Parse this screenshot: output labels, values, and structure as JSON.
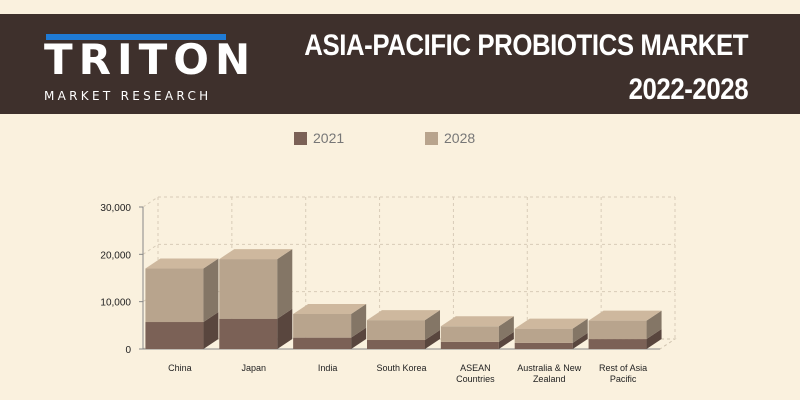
{
  "header": {
    "logo_word": "TRITON",
    "logo_sub": "MARKET RESEARCH",
    "title_line1": "ASIA-PACIFIC PROBIOTICS MARKET",
    "title_line2": "2022-2028"
  },
  "colors": {
    "header_bg": "#3e302c",
    "page_bg": "#faf1de",
    "logo_accent": "#1f7bd6",
    "series_2021": "#7b6156",
    "series_2028": "#b8a48d"
  },
  "chart_data": {
    "type": "bar",
    "stacked": true,
    "three_d": true,
    "legend_position": "top",
    "grid": true,
    "categories": [
      [
        "China"
      ],
      [
        "Japan"
      ],
      [
        "India"
      ],
      [
        "South Korea"
      ],
      [
        "ASEAN",
        "Countries"
      ],
      [
        "Australia & New",
        "Zealand"
      ],
      [
        "Rest of Asia",
        "Pacific"
      ]
    ],
    "series": [
      {
        "name": "2021",
        "values": [
          5700,
          6400,
          2400,
          1900,
          1500,
          1300,
          2100
        ]
      },
      {
        "name": "2028",
        "values": [
          11300,
          12600,
          5000,
          4200,
          3300,
          3000,
          3900
        ]
      }
    ],
    "ylim": [
      0,
      30000
    ],
    "yticks": [
      "0",
      "10,000",
      "20,000",
      "30,000"
    ],
    "ytick_values": [
      0,
      10000,
      20000,
      30000
    ]
  }
}
